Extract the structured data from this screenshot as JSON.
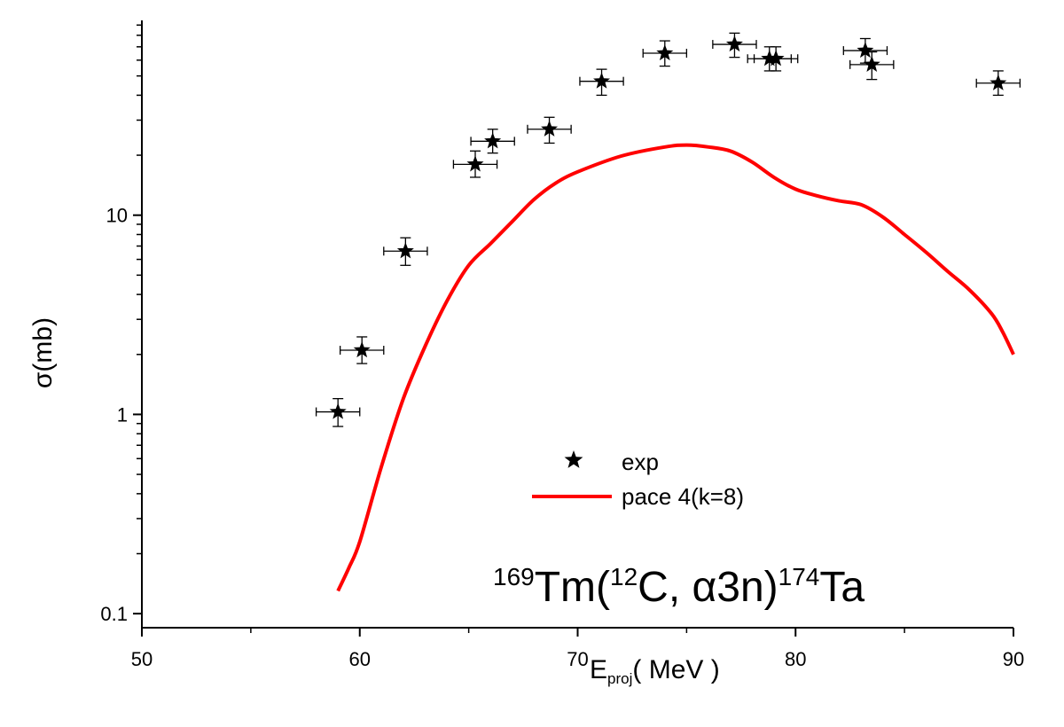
{
  "chart_data": {
    "type": "scatter",
    "xlabel": {
      "main": "E",
      "sub": "proj",
      "rest": "( MeV )"
    },
    "ylabel": "σ(mb)",
    "xlim": [
      50,
      90
    ],
    "ylim": [
      0.085,
      95
    ],
    "yscale": "log",
    "xticks": [
      50,
      60,
      70,
      80,
      90
    ],
    "xtick_labels": [
      "50",
      "60",
      "70",
      "80",
      "90"
    ],
    "yticks": [
      0.1,
      1,
      10
    ],
    "ytick_labels": [
      "0.1",
      "1",
      "10"
    ],
    "annotation": {
      "parts": [
        {
          "text": "169",
          "sup": true
        },
        {
          "text": "Tm(",
          "sup": false
        },
        {
          "text": "12",
          "sup": true
        },
        {
          "text": "C, α3n)",
          "sup": false
        },
        {
          "text": "174",
          "sup": true
        },
        {
          "text": "Ta",
          "sup": false
        }
      ]
    },
    "legend_position": "center-right",
    "series": [
      {
        "name": "exp",
        "kind": "points",
        "marker": "star",
        "color": "#000000",
        "points": [
          {
            "x": 59.0,
            "y": 1.03,
            "xerr": 1.0,
            "ylo": 0.87,
            "yhi": 1.2
          },
          {
            "x": 60.1,
            "y": 2.1,
            "xerr": 1.0,
            "ylo": 1.8,
            "yhi": 2.45
          },
          {
            "x": 62.1,
            "y": 6.6,
            "xerr": 1.0,
            "ylo": 5.6,
            "yhi": 7.7
          },
          {
            "x": 65.3,
            "y": 18.0,
            "xerr": 1.0,
            "ylo": 15.5,
            "yhi": 21.0
          },
          {
            "x": 66.1,
            "y": 23.5,
            "xerr": 1.0,
            "ylo": 20.5,
            "yhi": 27.0
          },
          {
            "x": 68.7,
            "y": 27.0,
            "xerr": 1.0,
            "ylo": 23.0,
            "yhi": 31.0
          },
          {
            "x": 71.1,
            "y": 47.0,
            "xerr": 1.0,
            "ylo": 40.0,
            "yhi": 54.0
          },
          {
            "x": 74.0,
            "y": 65.0,
            "xerr": 1.0,
            "ylo": 56.0,
            "yhi": 75.0
          },
          {
            "x": 77.2,
            "y": 72.0,
            "xerr": 1.0,
            "ylo": 62.0,
            "yhi": 82.0
          },
          {
            "x": 78.8,
            "y": 61.0,
            "xerr": 1.0,
            "ylo": 53.0,
            "yhi": 70.0
          },
          {
            "x": 79.1,
            "y": 61.0,
            "xerr": 1.0,
            "ylo": 53.0,
            "yhi": 70.0
          },
          {
            "x": 83.2,
            "y": 67.0,
            "xerr": 1.0,
            "ylo": 58.0,
            "yhi": 77.0
          },
          {
            "x": 83.5,
            "y": 57.0,
            "xerr": 1.0,
            "ylo": 48.0,
            "yhi": 66.0
          },
          {
            "x": 89.3,
            "y": 46.0,
            "xerr": 1.0,
            "ylo": 40.0,
            "yhi": 53.0
          }
        ]
      },
      {
        "name": "pace 4(k=8)",
        "kind": "line",
        "color": "#ff0000",
        "x": [
          59.0,
          59.5,
          60.0,
          61.0,
          62.0,
          63.0,
          64.0,
          65.0,
          66.0,
          67.0,
          68.0,
          69.0,
          70.0,
          72.0,
          74.0,
          75.0,
          76.0,
          77.0,
          78.0,
          79.0,
          80.0,
          81.0,
          82.0,
          83.0,
          84.0,
          85.0,
          86.0,
          87.0,
          88.0,
          89.0,
          89.5,
          90.0
        ],
        "y": [
          0.13,
          0.17,
          0.23,
          0.55,
          1.2,
          2.2,
          3.7,
          5.6,
          7.2,
          9.3,
          12.0,
          14.5,
          16.5,
          19.8,
          22.0,
          22.5,
          22.0,
          21.0,
          18.5,
          15.5,
          13.5,
          12.5,
          11.8,
          11.3,
          9.8,
          8.0,
          6.5,
          5.2,
          4.2,
          3.2,
          2.6,
          2.0
        ]
      }
    ]
  }
}
